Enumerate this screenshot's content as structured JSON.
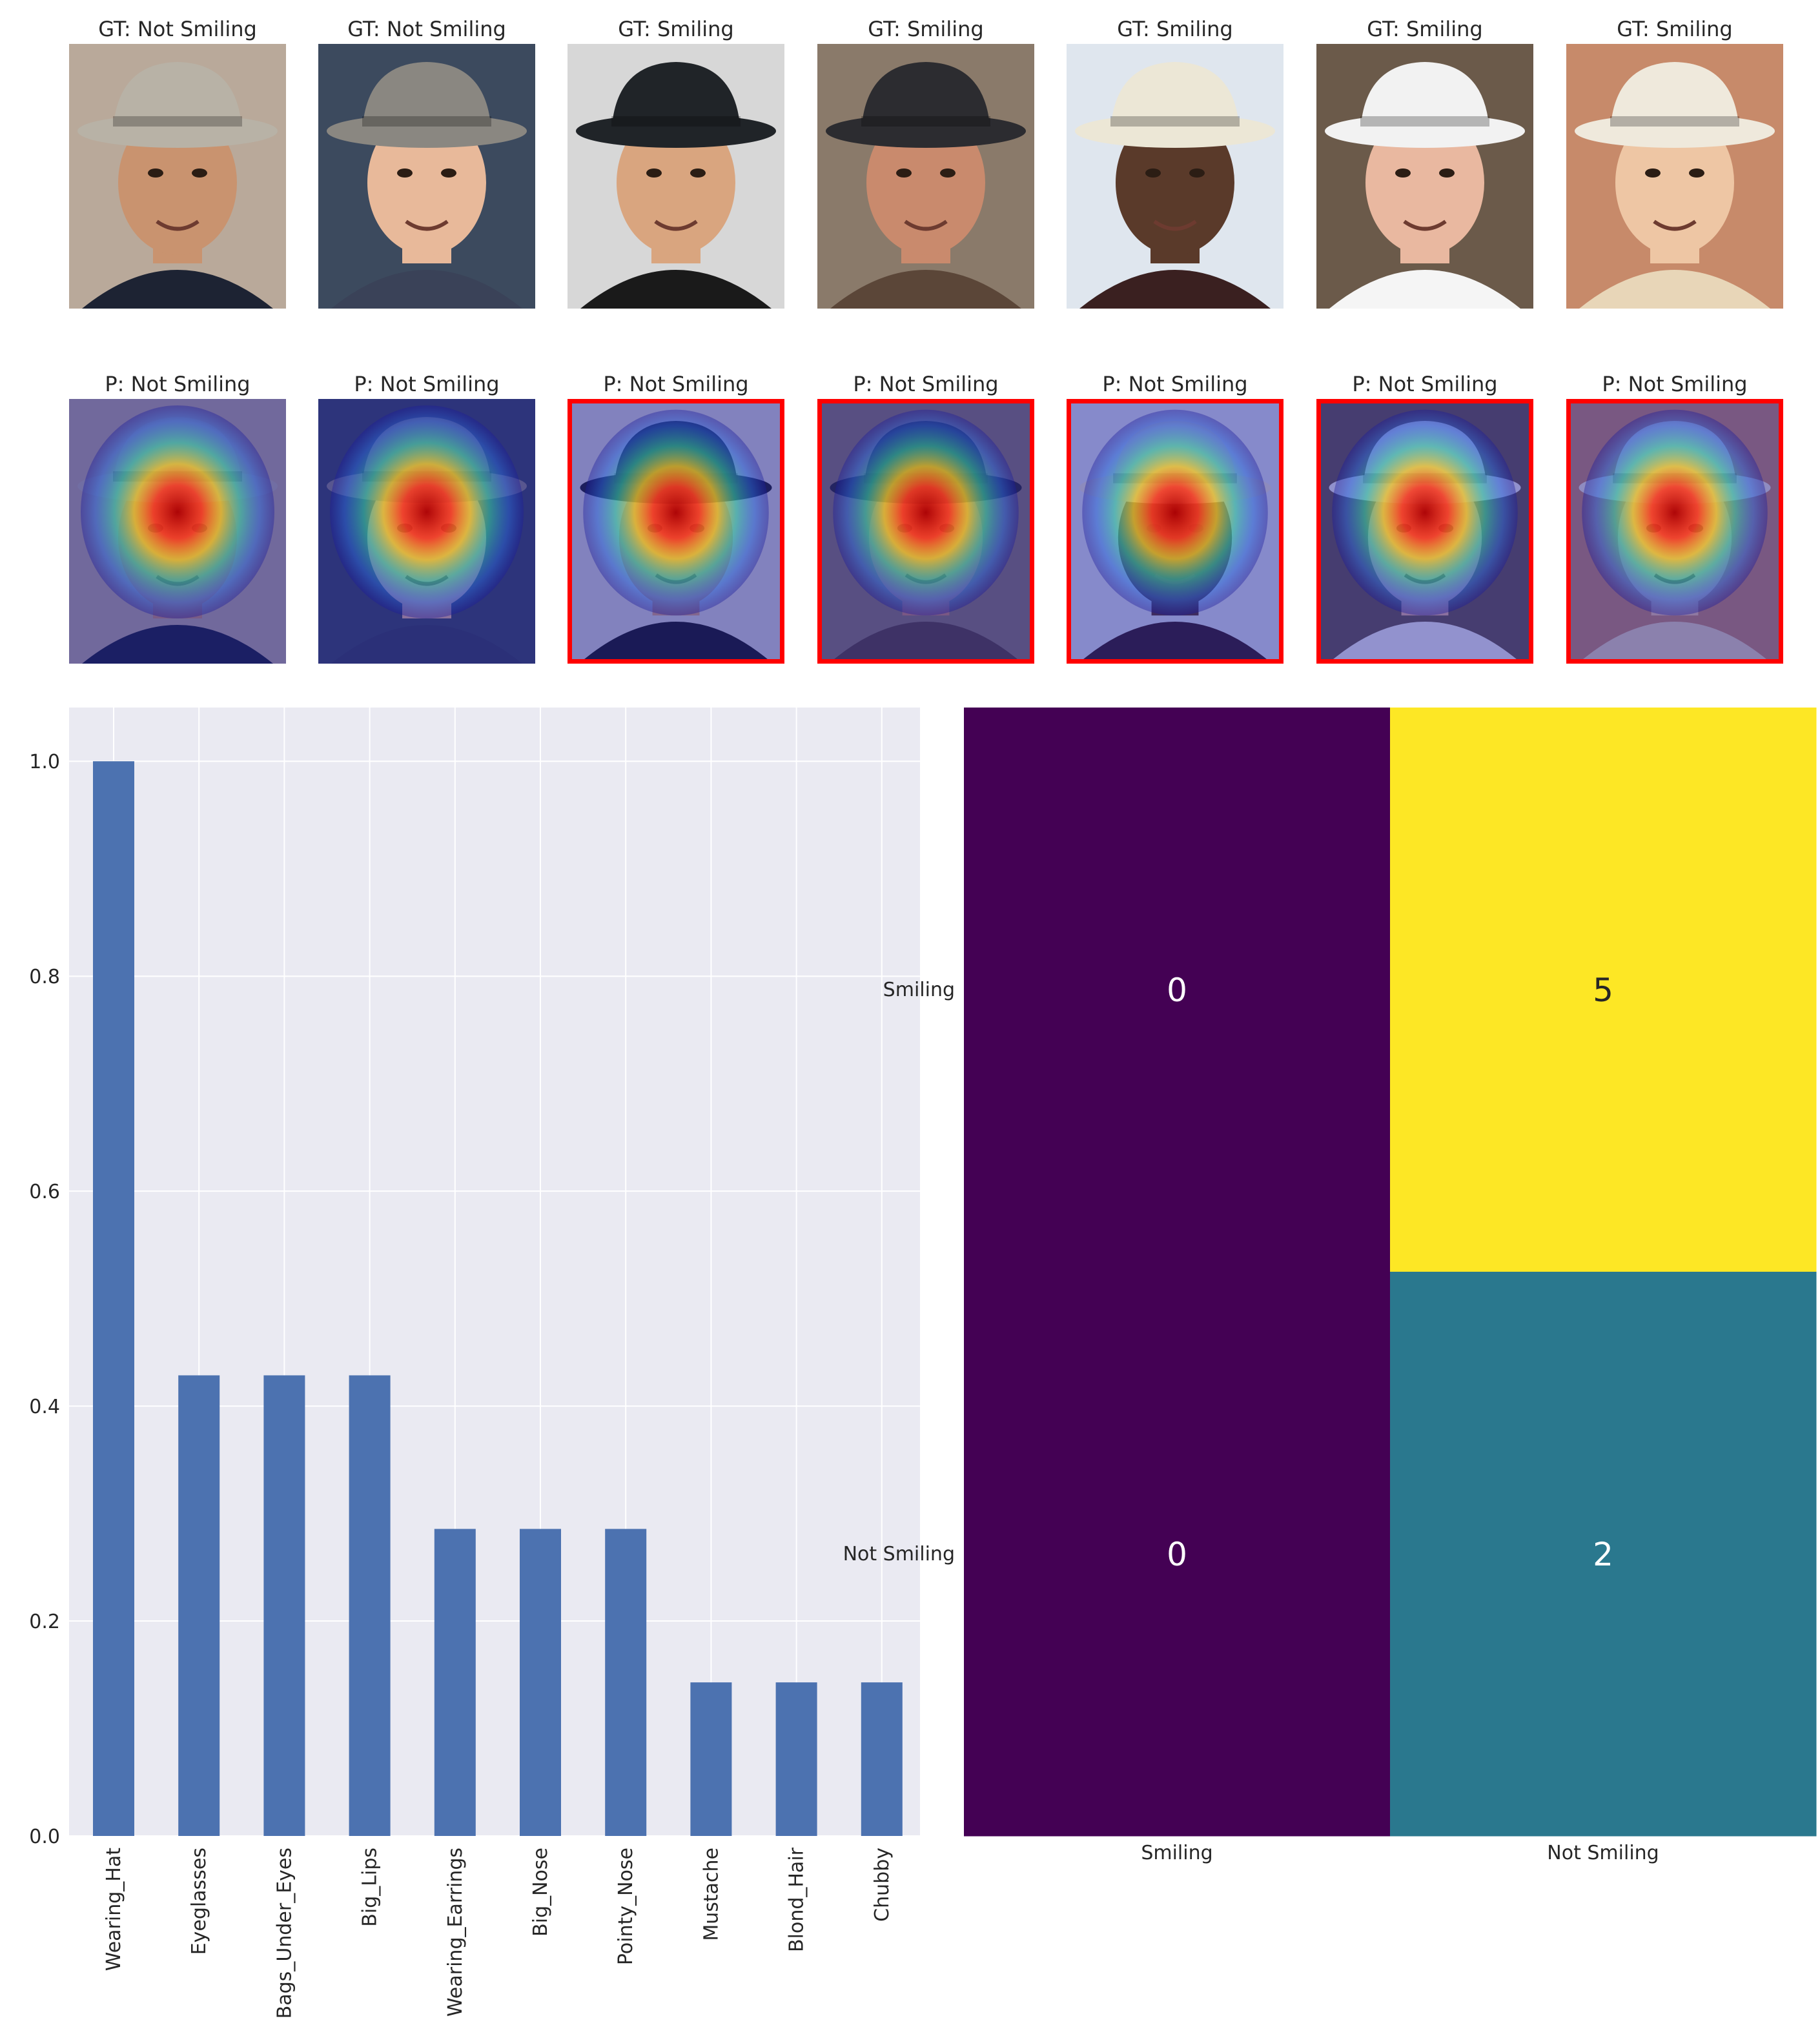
{
  "gallery": {
    "ground_truth": [
      {
        "label": "GT: Not Smiling"
      },
      {
        "label": "GT: Not Smiling"
      },
      {
        "label": "GT: Smiling"
      },
      {
        "label": "GT: Smiling"
      },
      {
        "label": "GT: Smiling"
      },
      {
        "label": "GT: Smiling"
      },
      {
        "label": "GT: Smiling"
      }
    ],
    "predictions": [
      {
        "label": "P: Not Smiling",
        "misclassified": false
      },
      {
        "label": "P: Not Smiling",
        "misclassified": false
      },
      {
        "label": "P: Not Smiling",
        "misclassified": true
      },
      {
        "label": "P: Not Smiling",
        "misclassified": true
      },
      {
        "label": "P: Not Smiling",
        "misclassified": true
      },
      {
        "label": "P: Not Smiling",
        "misclassified": true
      },
      {
        "label": "P: Not Smiling",
        "misclassified": true
      }
    ],
    "error_border_color": "#ff0000"
  },
  "chart_data": [
    {
      "type": "bar",
      "categories": [
        "Wearing_Hat",
        "Eyeglasses",
        "Bags_Under_Eyes",
        "Big_Lips",
        "Wearing_Earrings",
        "Big_Nose",
        "Pointy_Nose",
        "Mustache",
        "Blond_Hair",
        "Chubby"
      ],
      "values": [
        1.0,
        0.4286,
        0.4286,
        0.4286,
        0.2857,
        0.2857,
        0.2857,
        0.1429,
        0.1429,
        0.1429
      ],
      "ylim": [
        0,
        1.05
      ],
      "yticks": [
        "0.0",
        "0.2",
        "0.4",
        "0.6",
        "0.8",
        "1.0"
      ],
      "grid": true,
      "bar_color": "#4c72b0",
      "background": "#eaeaf2"
    },
    {
      "type": "heatmap",
      "rows": [
        "Smiling",
        "Not Smiling"
      ],
      "columns": [
        "Smiling",
        "Not Smiling"
      ],
      "values": [
        [
          0,
          5
        ],
        [
          0,
          2
        ]
      ],
      "cell_labels": [
        [
          "0",
          "5"
        ],
        [
          "0",
          "2"
        ]
      ],
      "colormap": "viridis",
      "cell_colors": [
        [
          "#440154",
          "#fde725"
        ],
        [
          "#440154",
          "#2a788e"
        ]
      ]
    }
  ]
}
